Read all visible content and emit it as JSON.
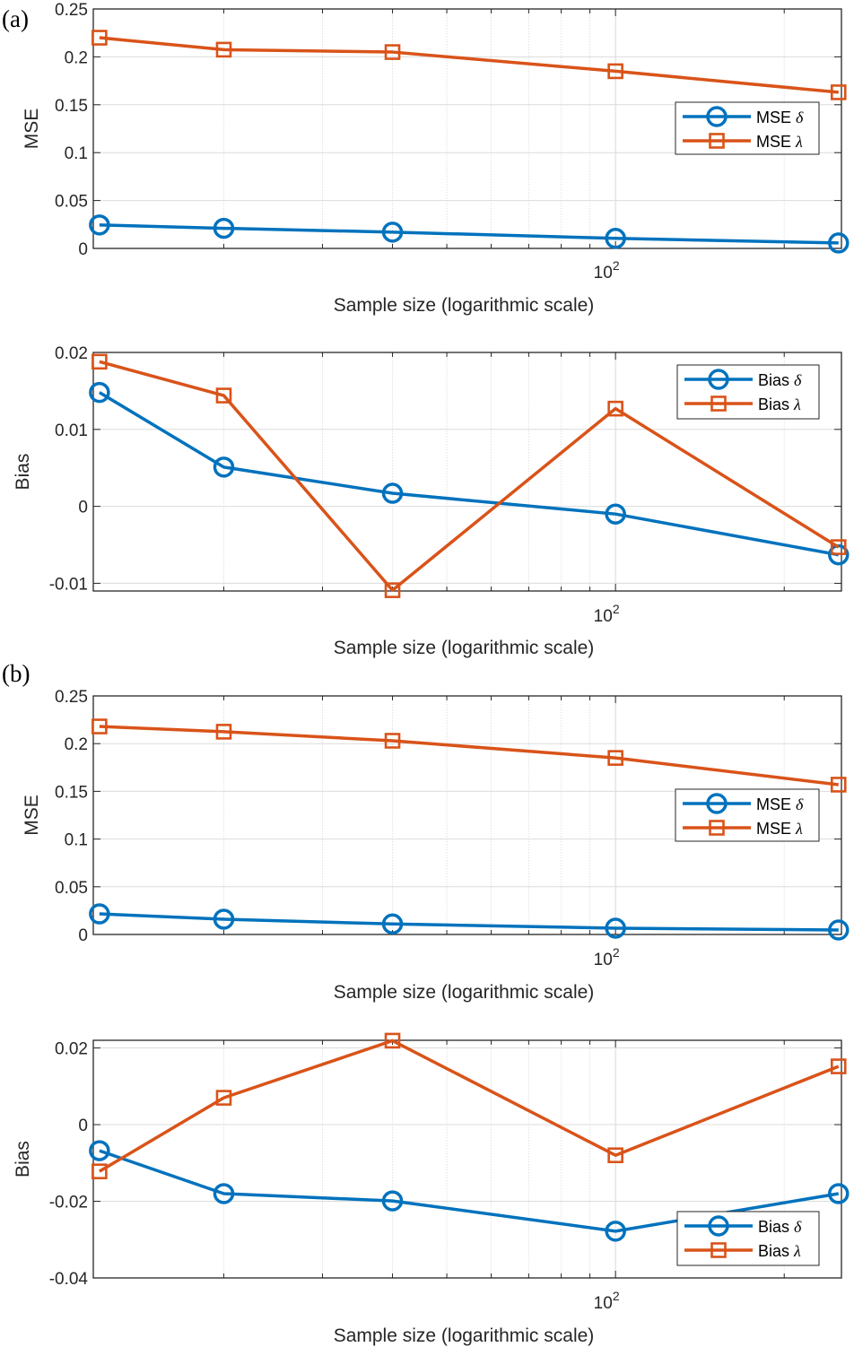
{
  "figure": {
    "colors": {
      "blue": "#0072BD",
      "orange": "#D95319",
      "axis": "#262626",
      "grid": "#dcdcdc"
    }
  },
  "chart_data": [
    {
      "panel_label": "(a)",
      "type": "line",
      "title": "",
      "xlabel": "Sample size (logarithmic scale)",
      "ylabel": "MSE",
      "xscale": "log",
      "xlim": [
        11.7,
        253
      ],
      "x_tick_labels": [
        {
          "base": "10",
          "exp": "2",
          "value": 100
        }
      ],
      "ylim": [
        0,
        0.25
      ],
      "yticks": [
        0,
        0.05,
        0.1,
        0.15,
        0.2,
        0.25
      ],
      "ytick_labels": [
        "0",
        "0.05",
        "0.1",
        "0.15",
        "0.2",
        "0.25"
      ],
      "grid": true,
      "legend_position": "right",
      "x": [
        12,
        20,
        40,
        100,
        250
      ],
      "series": [
        {
          "name": "MSE",
          "greek": "δ",
          "color": "#0072BD",
          "marker": "circle",
          "values": [
            0.0245,
            0.021,
            0.017,
            0.0105,
            0.0057
          ]
        },
        {
          "name": "MSE",
          "greek": "λ",
          "color": "#D95319",
          "marker": "square",
          "values": [
            0.22,
            0.2075,
            0.205,
            0.185,
            0.163
          ]
        }
      ]
    },
    {
      "panel_label": "",
      "type": "line",
      "title": "",
      "xlabel": "Sample size (logarithmic scale)",
      "ylabel": "Bias",
      "xscale": "log",
      "xlim": [
        11.7,
        253
      ],
      "x_tick_labels": [
        {
          "base": "10",
          "exp": "2",
          "value": 100
        }
      ],
      "ylim": [
        -0.011,
        0.02
      ],
      "yticks": [
        -0.01,
        0,
        0.01,
        0.02
      ],
      "ytick_labels": [
        "-0.01",
        "0",
        "0.01",
        "0.02"
      ],
      "grid": true,
      "legend_position": "top-right",
      "x": [
        12,
        20,
        40,
        100,
        250
      ],
      "series": [
        {
          "name": "Bias",
          "greek": "δ",
          "color": "#0072BD",
          "marker": "circle",
          "values": [
            0.0148,
            0.0051,
            0.0017,
            -0.001,
            -0.0063
          ]
        },
        {
          "name": "Bias",
          "greek": "λ",
          "color": "#D95319",
          "marker": "square",
          "values": [
            0.0188,
            0.0144,
            -0.0109,
            0.0127,
            -0.0053
          ]
        }
      ]
    },
    {
      "panel_label": "(b)",
      "type": "line",
      "title": "",
      "xlabel": "Sample size (logarithmic scale)",
      "ylabel": "MSE",
      "xscale": "log",
      "xlim": [
        11.7,
        253
      ],
      "x_tick_labels": [
        {
          "base": "10",
          "exp": "2",
          "value": 100
        }
      ],
      "ylim": [
        0,
        0.25
      ],
      "yticks": [
        0,
        0.05,
        0.1,
        0.15,
        0.2,
        0.25
      ],
      "ytick_labels": [
        "0",
        "0.05",
        "0.1",
        "0.15",
        "0.2",
        "0.25"
      ],
      "grid": true,
      "legend_position": "right",
      "x": [
        12,
        20,
        40,
        100,
        250
      ],
      "series": [
        {
          "name": "MSE",
          "greek": "δ",
          "color": "#0072BD",
          "marker": "circle",
          "values": [
            0.0216,
            0.016,
            0.011,
            0.0066,
            0.0047
          ]
        },
        {
          "name": "MSE",
          "greek": "λ",
          "color": "#D95319",
          "marker": "square",
          "values": [
            0.218,
            0.2125,
            0.203,
            0.185,
            0.157
          ]
        }
      ]
    },
    {
      "panel_label": "",
      "type": "line",
      "title": "",
      "xlabel": "Sample size (logarithmic scale)",
      "ylabel": "Bias",
      "xscale": "log",
      "xlim": [
        11.7,
        253
      ],
      "x_tick_labels": [
        {
          "base": "10",
          "exp": "2",
          "value": 100
        }
      ],
      "ylim": [
        -0.04,
        0.022
      ],
      "yticks": [
        -0.04,
        -0.02,
        0,
        0.02
      ],
      "ytick_labels": [
        "-0.04",
        "-0.02",
        "0",
        "0.02"
      ],
      "grid": true,
      "legend_position": "bottom-right",
      "x": [
        12,
        20,
        40,
        100,
        250
      ],
      "series": [
        {
          "name": "Bias",
          "greek": "δ",
          "color": "#0072BD",
          "marker": "circle",
          "values": [
            -0.0068,
            -0.018,
            -0.0199,
            -0.0278,
            -0.018
          ]
        },
        {
          "name": "Bias",
          "greek": "λ",
          "color": "#D95319",
          "marker": "square",
          "values": [
            -0.0122,
            0.007,
            0.0219,
            -0.008,
            0.0152
          ]
        }
      ]
    }
  ]
}
